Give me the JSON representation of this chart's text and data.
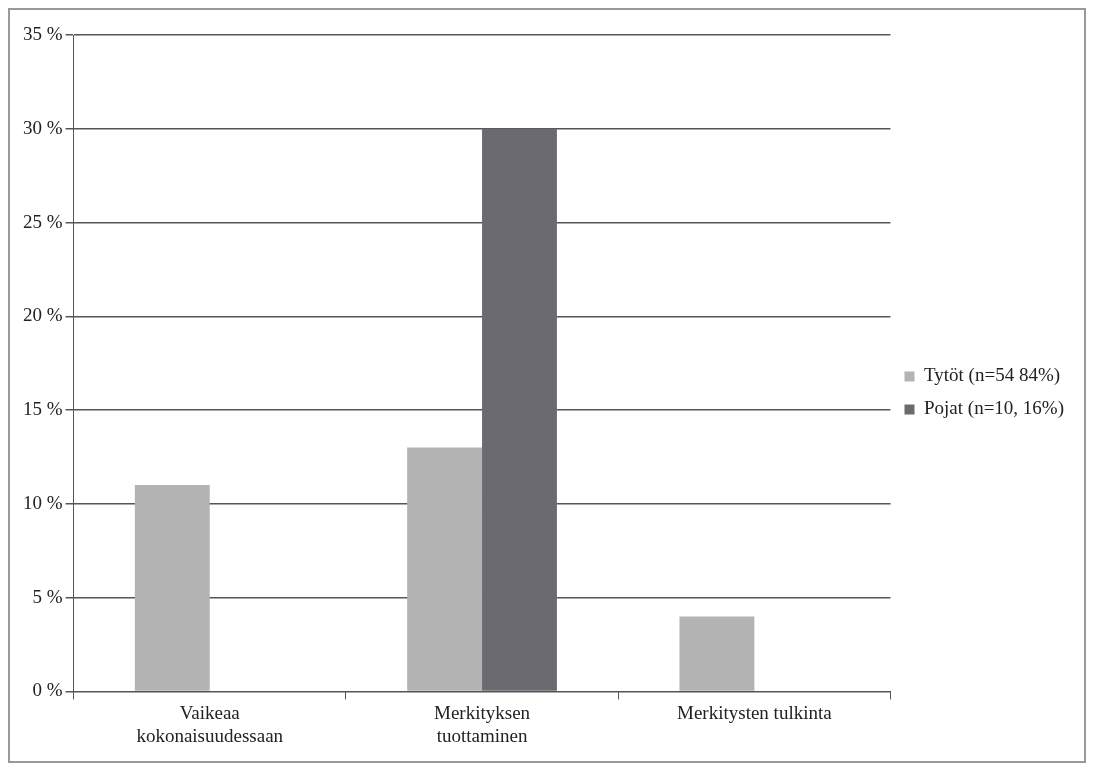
{
  "chart_data": {
    "type": "bar",
    "categories": [
      "Vaikeaa kokonaisuudessaan",
      "Merkityksen tuottaminen",
      "Merkitysten tulkinta"
    ],
    "series": [
      {
        "name": "Tytöt (n=54 84%)",
        "color": "#b3b3b3",
        "values": [
          11,
          13,
          4
        ]
      },
      {
        "name": "Pojat (n=10, 16%)",
        "color": "#6b6a70",
        "values": [
          0,
          30,
          0
        ]
      }
    ],
    "ylim": [
      0,
      35
    ],
    "yticks": [
      {
        "value": 0,
        "label": "0 %"
      },
      {
        "value": 5,
        "label": "5 %"
      },
      {
        "value": 10,
        "label": "10 %"
      },
      {
        "value": 15,
        "label": "15 %"
      },
      {
        "value": 20,
        "label": "20 %"
      },
      {
        "value": 25,
        "label": "25 %"
      },
      {
        "value": 30,
        "label": "30 %"
      },
      {
        "value": 35,
        "label": "35 %"
      }
    ],
    "grid": "y",
    "legend": "right"
  }
}
